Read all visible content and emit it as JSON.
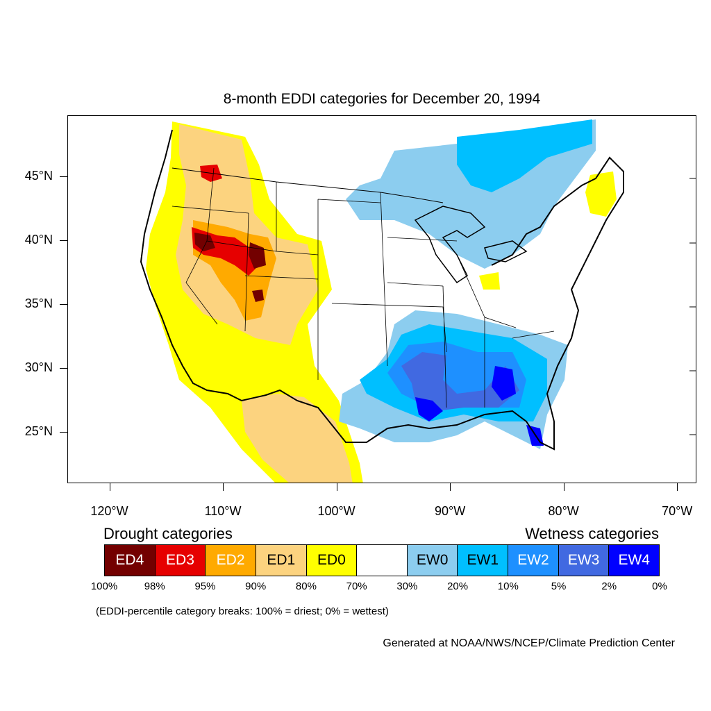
{
  "title": "8-month EDDI categories for December 20, 1994",
  "latitude_labels": [
    {
      "label": "45°N",
      "lat": 45
    },
    {
      "label": "40°N",
      "lat": 40
    },
    {
      "label": "35°N",
      "lat": 35
    },
    {
      "label": "30°N",
      "lat": 30
    },
    {
      "label": "25°N",
      "lat": 25
    }
  ],
  "longitude_labels": [
    {
      "label": "120°W",
      "lon": -120
    },
    {
      "label": "110°W",
      "lon": -110
    },
    {
      "label": "100°W",
      "lon": -100
    },
    {
      "label": "90°W",
      "lon": -90
    },
    {
      "label": "80°W",
      "lon": -80
    },
    {
      "label": "70°W",
      "lon": -70
    }
  ],
  "map_extent": {
    "lon_min": -123.7,
    "lon_max": -68.3,
    "lat_min": 21,
    "lat_max": 49.8
  },
  "legend": {
    "drought_title": "Drought categories",
    "wetness_title": "Wetness categories",
    "categories": [
      {
        "label": "ED4",
        "color": "#730000",
        "text_color": "#ffffff"
      },
      {
        "label": "ED3",
        "color": "#e60000",
        "text_color": "#ffffff"
      },
      {
        "label": "ED2",
        "color": "#ffaa00",
        "text_color": "#ffffff"
      },
      {
        "label": "ED1",
        "color": "#fcd37f",
        "text_color": "#000000"
      },
      {
        "label": "ED0",
        "color": "#ffff00",
        "text_color": "#000000"
      },
      {
        "label": "",
        "color": "#ffffff",
        "text_color": "#000000"
      },
      {
        "label": "EW0",
        "color": "#8ccdef",
        "text_color": "#000000"
      },
      {
        "label": "EW1",
        "color": "#00bfff",
        "text_color": "#000000"
      },
      {
        "label": "EW2",
        "color": "#1e90ff",
        "text_color": "#ffffff"
      },
      {
        "label": "EW3",
        "color": "#4169e1",
        "text_color": "#ffffff"
      },
      {
        "label": "EW4",
        "color": "#0000ff",
        "text_color": "#ffffff"
      }
    ],
    "breaks": [
      "100%",
      "98%",
      "95%",
      "90%",
      "80%",
      "70%",
      "30%",
      "20%",
      "10%",
      "5%",
      "2%",
      "0%"
    ]
  },
  "footnote": "(EDDI-percentile category breaks: 100% = driest; 0% = wettest)",
  "credit": "Generated at NOAA/NWS/NCEP/Climate Prediction Center"
}
